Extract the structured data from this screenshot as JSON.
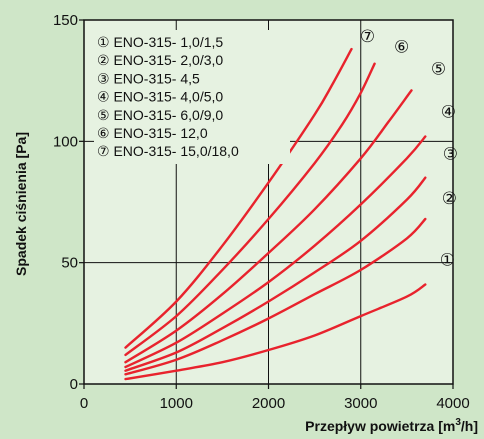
{
  "chart_data": {
    "type": "line",
    "xlabel": "Przepływ  powietrza [m",
    "xlabel_sup": "3",
    "xlabel_end": "/h]",
    "ylabel": "Spadek  ciśnienia [Pa]",
    "xlim": [
      0,
      4000
    ],
    "ylim": [
      0,
      150
    ],
    "x_ticks": [
      {
        "value": 0,
        "label": "0"
      },
      {
        "value": 1000,
        "label": "1000"
      },
      {
        "value": 2000,
        "label": "2000"
      },
      {
        "value": 3000,
        "label": "3000"
      },
      {
        "value": 4000,
        "label": "4000"
      }
    ],
    "y_ticks": [
      {
        "value": 0,
        "label": "0"
      },
      {
        "value": 50,
        "label": "50"
      },
      {
        "value": 100,
        "label": "100"
      },
      {
        "value": 150,
        "label": "150"
      }
    ],
    "grid": true,
    "line_color": "#e8232d",
    "legend_placement": "top-left",
    "series": [
      {
        "marker": "①",
        "name": "ENO-315- 1,0/1,5",
        "x": [
          450,
          1000,
          1500,
          2000,
          2500,
          3000,
          3500,
          3700
        ],
        "y": [
          2,
          5.5,
          9,
          14,
          20,
          28,
          36,
          41
        ]
      },
      {
        "marker": "②",
        "name": "ENO-315- 2,0/3,0",
        "x": [
          450,
          1000,
          1500,
          2000,
          2500,
          3000,
          3500,
          3700
        ],
        "y": [
          4,
          10,
          18,
          27,
          37,
          47,
          60,
          68
        ]
      },
      {
        "marker": "③",
        "name": "ENO-315- 4,5",
        "x": [
          450,
          1000,
          1500,
          2000,
          2500,
          3000,
          3500,
          3700
        ],
        "y": [
          5.5,
          13,
          23,
          34,
          46,
          59,
          76,
          85
        ]
      },
      {
        "marker": "④",
        "name": "ENO-315- 4,0/5,0",
        "x": [
          450,
          1000,
          1500,
          2000,
          2500,
          3000,
          3500,
          3700
        ],
        "y": [
          7,
          17,
          29,
          42,
          57,
          74,
          93,
          102
        ]
      },
      {
        "marker": "⑤",
        "name": "ENO-315- 6,0/9,0",
        "x": [
          450,
          1000,
          1500,
          2000,
          2500,
          3000,
          3300,
          3550
        ],
        "y": [
          9,
          22,
          37,
          54,
          72,
          93,
          108,
          121
        ]
      },
      {
        "marker": "⑥",
        "name": "ENO-315- 12,0",
        "x": [
          450,
          1000,
          1500,
          2000,
          2500,
          2800,
          3000,
          3150
        ],
        "y": [
          12,
          28,
          47,
          68,
          91,
          107,
          120,
          132
        ]
      },
      {
        "marker": "⑦",
        "name": "ENO-315- 15,0/18,0",
        "x": [
          450,
          1000,
          1500,
          2000,
          2500,
          2700,
          2900
        ],
        "y": [
          15,
          34,
          57,
          83,
          111,
          124,
          138
        ]
      }
    ]
  }
}
